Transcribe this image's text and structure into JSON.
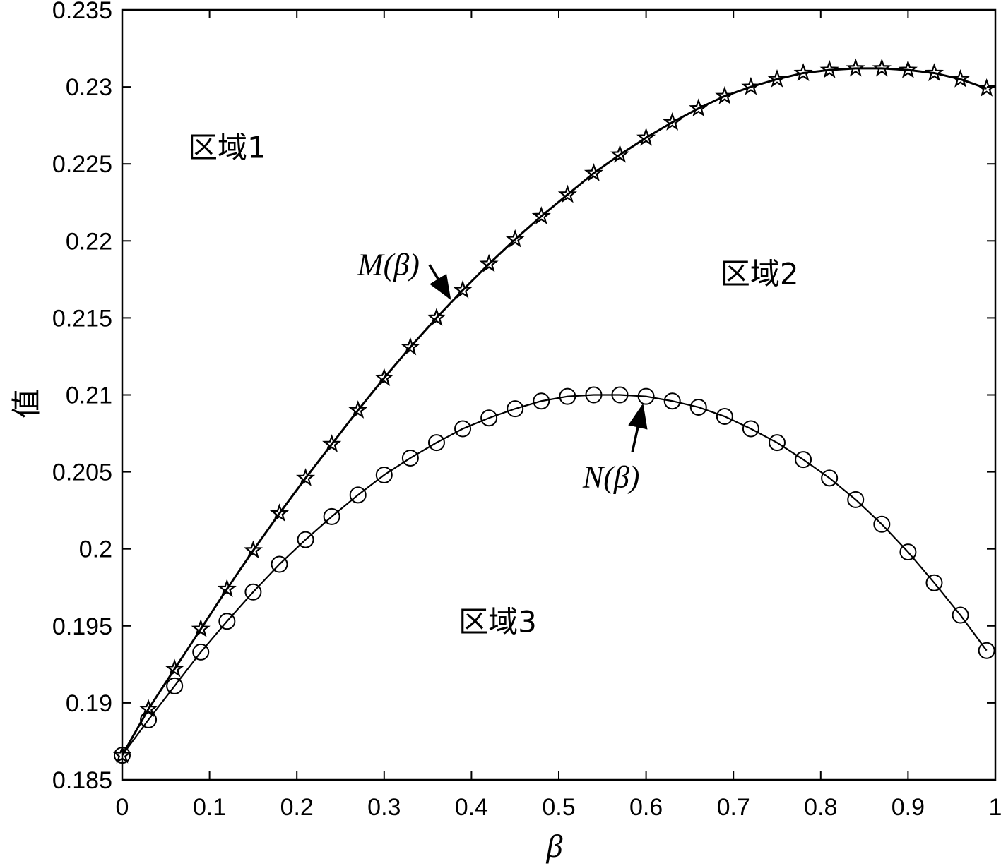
{
  "chart_data": {
    "type": "line",
    "xlabel": "β",
    "ylabel": "值",
    "xlim": [
      0,
      1
    ],
    "ylim": [
      0.185,
      0.235
    ],
    "xticks": [
      0,
      0.1,
      0.2,
      0.3,
      0.4,
      0.5,
      0.6,
      0.7,
      0.8,
      0.9,
      1
    ],
    "xtick_labels": [
      "0",
      "0.1",
      "0.2",
      "0.3",
      "0.4",
      "0.5",
      "0.6",
      "0.7",
      "0.8",
      "0.9",
      "1"
    ],
    "yticks": [
      0.185,
      0.19,
      0.195,
      0.2,
      0.205,
      0.21,
      0.215,
      0.22,
      0.225,
      0.23,
      0.235
    ],
    "ytick_labels": [
      "0.185",
      "0.19",
      "0.195",
      "0.2",
      "0.205",
      "0.21",
      "0.215",
      "0.22",
      "0.225",
      "0.23",
      "0.235"
    ],
    "grid": false,
    "x": [
      0,
      0.03,
      0.06,
      0.09,
      0.12,
      0.15,
      0.18,
      0.21,
      0.24,
      0.27,
      0.3,
      0.33,
      0.36,
      0.39,
      0.42,
      0.45,
      0.48,
      0.51,
      0.54,
      0.57,
      0.6,
      0.63,
      0.66,
      0.69,
      0.72,
      0.75,
      0.78,
      0.81,
      0.84,
      0.87,
      0.9,
      0.93,
      0.96,
      0.99
    ],
    "series": [
      {
        "name": "M(β)",
        "marker": "star",
        "values": [
          0.1866,
          0.1896,
          0.1922,
          0.1948,
          0.1974,
          0.1999,
          0.2023,
          0.2046,
          0.2068,
          0.209,
          0.2111,
          0.2131,
          0.215,
          0.2168,
          0.2185,
          0.2201,
          0.2216,
          0.223,
          0.2244,
          0.2256,
          0.2267,
          0.2277,
          0.2286,
          0.2294,
          0.23,
          0.2305,
          0.2309,
          0.2311,
          0.2312,
          0.2312,
          0.2311,
          0.2309,
          0.2305,
          0.2299
        ]
      },
      {
        "name": "N(β)",
        "marker": "circle",
        "values": [
          0.1866,
          0.1889,
          0.1911,
          0.1933,
          0.1953,
          0.1972,
          0.199,
          0.2006,
          0.2021,
          0.2035,
          0.2048,
          0.2059,
          0.2069,
          0.2078,
          0.2085,
          0.2091,
          0.2096,
          0.2099,
          0.21,
          0.21,
          0.2099,
          0.2096,
          0.2092,
          0.2086,
          0.2078,
          0.2069,
          0.2058,
          0.2046,
          0.2032,
          0.2016,
          0.1998,
          0.1978,
          0.1957,
          0.1934
        ]
      }
    ],
    "annotations": [
      {
        "text": "区域1",
        "x": 0.12,
        "y": 0.2254
      },
      {
        "text": "区域2",
        "x": 0.73,
        "y": 0.2172
      },
      {
        "text": "区域3",
        "x": 0.43,
        "y": 0.1946
      },
      {
        "text": "M(β)",
        "x": 0.305,
        "y": 0.2178,
        "arrow_to": [
          0.375,
          0.2163
        ]
      },
      {
        "text": "N(β)",
        "x": 0.56,
        "y": 0.204,
        "arrow_to": [
          0.596,
          0.2093
        ]
      }
    ]
  }
}
